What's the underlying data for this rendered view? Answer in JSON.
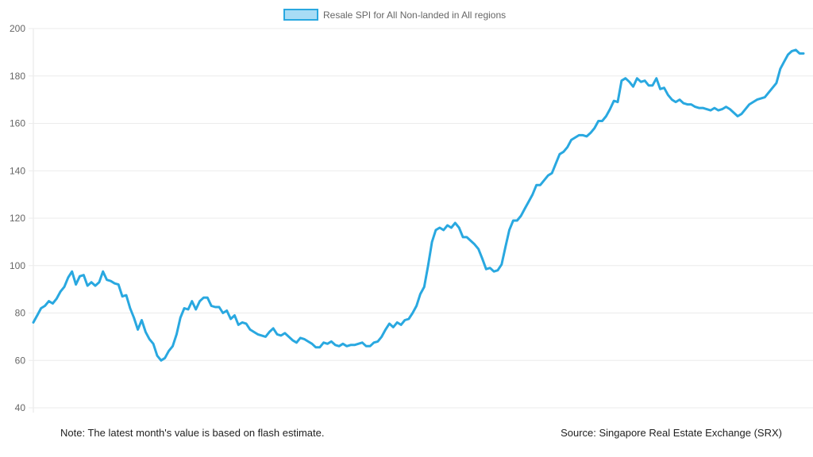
{
  "chart_data": {
    "type": "line",
    "title": "",
    "xlabel": "",
    "ylabel": "",
    "ylim": [
      40,
      200
    ],
    "yticks": [
      40,
      60,
      80,
      100,
      120,
      140,
      160,
      180,
      200
    ],
    "grid": true,
    "legend_position": "top-center",
    "series": [
      {
        "name": "Resale SPI for All Non-landed in All regions",
        "color": "#29a8e0",
        "values": [
          76,
          79,
          82,
          83,
          85,
          84,
          86,
          89,
          91,
          95,
          97.5,
          92,
          95.5,
          96,
          91.5,
          93,
          91.5,
          93,
          97.5,
          94,
          93.5,
          92.5,
          92,
          87,
          87.5,
          82,
          78,
          73,
          77,
          72,
          69,
          67,
          62,
          60,
          61,
          64,
          66,
          71,
          78,
          82,
          81.5,
          85,
          81.5,
          85,
          86.5,
          86.5,
          83,
          82.5,
          82.5,
          80,
          81,
          77.5,
          79,
          75,
          76,
          75.5,
          73,
          72,
          71,
          70.5,
          70,
          72,
          73.5,
          71,
          70.5,
          71.5,
          70,
          68.5,
          67.5,
          69.5,
          69,
          68,
          67,
          65.5,
          65.5,
          67.5,
          67,
          68,
          66.5,
          66,
          67,
          66,
          66.5,
          66.5,
          67,
          67.5,
          66,
          66,
          67.5,
          68,
          70,
          73,
          75.5,
          74,
          76,
          75,
          77,
          77.5,
          80,
          83,
          88,
          91,
          100,
          110,
          115,
          116,
          115,
          117,
          116,
          118,
          116,
          112,
          112,
          110.5,
          109,
          107,
          103,
          98.5,
          99,
          97.5,
          98,
          100.5,
          108,
          115,
          119,
          119,
          121,
          124,
          127,
          130,
          134,
          134,
          136,
          138,
          139,
          143,
          147,
          148,
          150,
          153,
          154,
          155,
          155,
          154.5,
          156,
          158,
          161,
          161,
          163,
          166,
          169.5,
          169,
          178,
          179,
          177.5,
          175.5,
          179,
          177.5,
          178,
          176,
          176,
          179,
          174.5,
          175,
          172,
          170,
          169,
          170,
          168.5,
          168,
          168,
          167,
          166.5,
          166.5,
          166,
          165.5,
          166.5,
          165.5,
          166,
          167,
          166,
          164.5,
          163,
          164,
          166,
          168,
          169,
          170,
          170.5,
          171,
          173,
          175,
          177,
          183,
          186,
          189,
          190.5,
          191,
          189.5,
          189.5
        ]
      }
    ]
  },
  "footer": {
    "note": "Note: The latest month's value is based on flash estimate.",
    "source": "Source: Singapore Real Estate Exchange (SRX)"
  }
}
